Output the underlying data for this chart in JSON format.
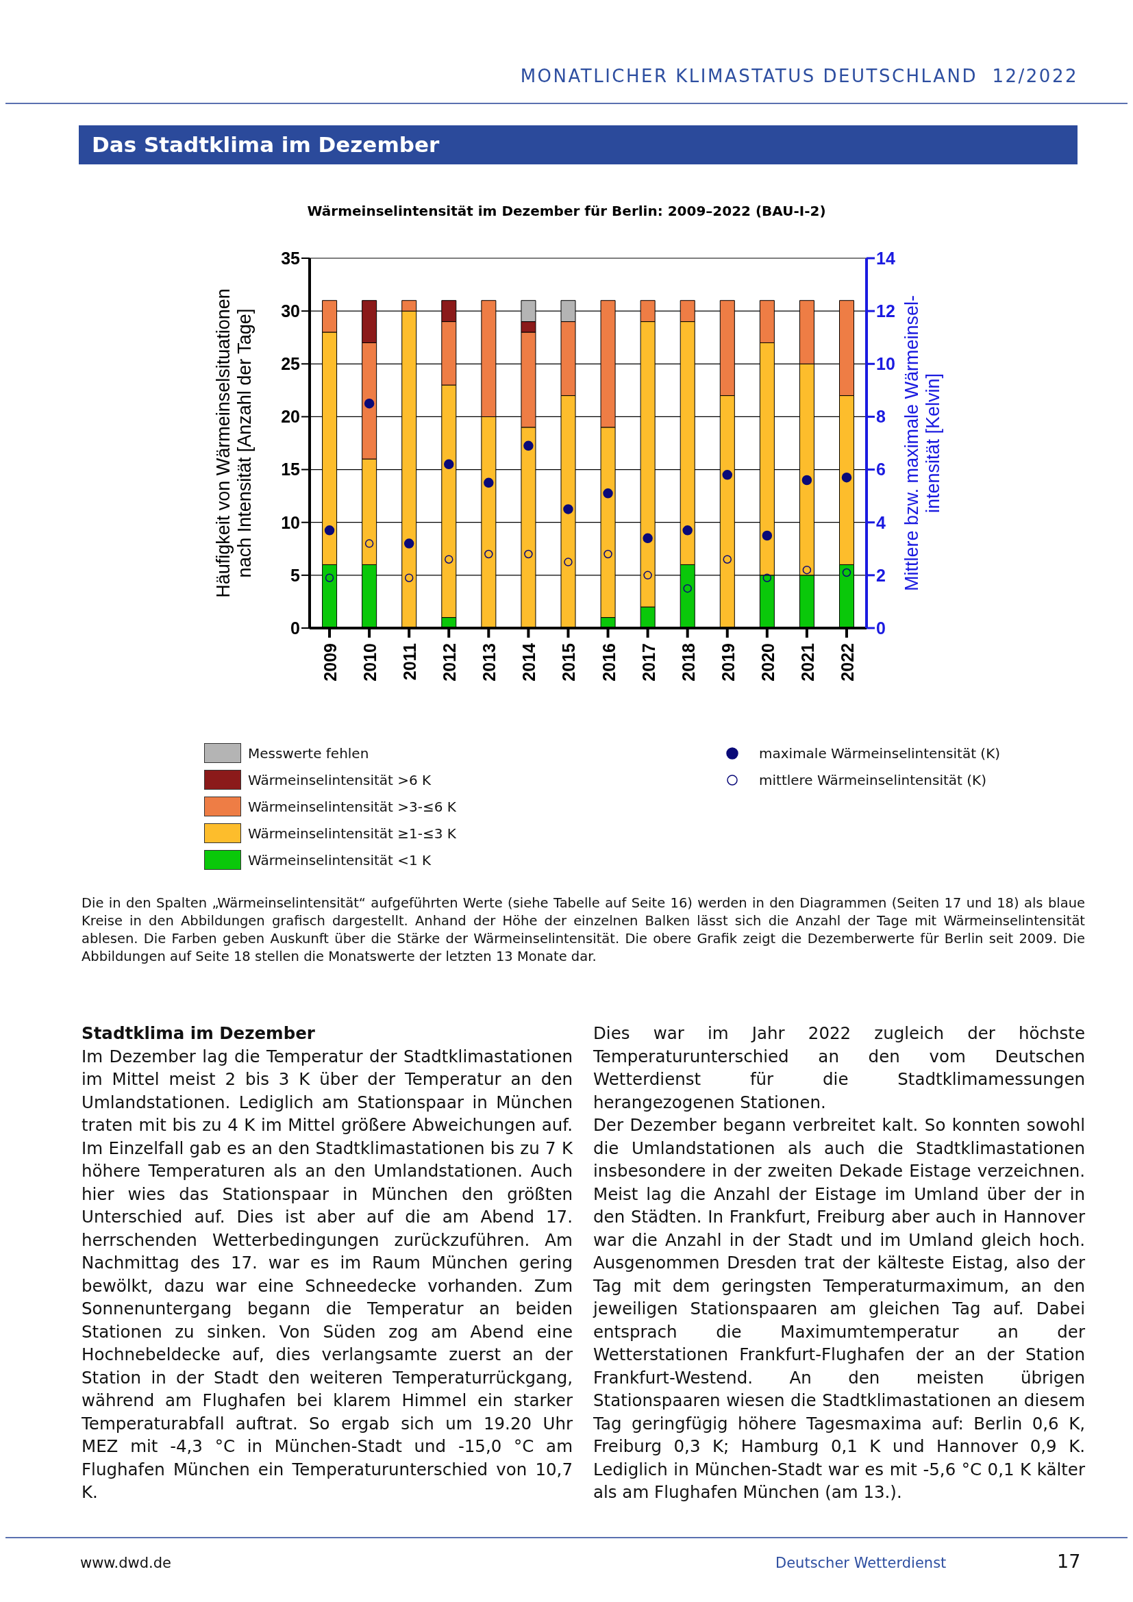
{
  "chart_data": {
    "type": "bar",
    "title": "Wärmeinselintensität im Dezember für Berlin: 2009–2022 (BAU-I-2)",
    "ylabel": "Häufigkeit von Wärmeinselsituationen\nnach Intensität [Anzahl der Tage]",
    "y2label": "Mittlere bzw. maximale Wärmeinsel-\nintensität [Kelvin]",
    "categories": [
      "2009",
      "2010",
      "2011",
      "2012",
      "2013",
      "2014",
      "2015",
      "2016",
      "2017",
      "2018",
      "2019",
      "2020",
      "2021",
      "2022"
    ],
    "stacked": true,
    "grid": "y",
    "legend": "bottom",
    "ylim": [
      0,
      35
    ],
    "yticks": [
      0,
      5,
      10,
      15,
      20,
      25,
      30,
      35
    ],
    "y2lim": [
      0,
      14
    ],
    "y2ticks": [
      0,
      2,
      4,
      6,
      8,
      10,
      12,
      14
    ],
    "series": [
      {
        "name": "Wärmeinselintensität <1 K",
        "color": "#0ac80a",
        "values": [
          6,
          6,
          0,
          1,
          0,
          0,
          0,
          1,
          2,
          6,
          0,
          5,
          5,
          6
        ]
      },
      {
        "name": "Wärmeinselintensität ≥1-≤3 K",
        "color": "#fdbd2c",
        "values": [
          22,
          10,
          30,
          22,
          20,
          19,
          22,
          18,
          27,
          23,
          22,
          22,
          20,
          16
        ]
      },
      {
        "name": "Wärmeinselintensität >3-≤6 K",
        "color": "#ee7d45",
        "values": [
          3,
          11,
          1,
          6,
          11,
          9,
          7,
          12,
          2,
          2,
          9,
          4,
          6,
          9
        ]
      },
      {
        "name": "Wärmeinselintensität >6 K",
        "color": "#8b1a1a",
        "values": [
          0,
          4,
          0,
          2,
          0,
          1,
          0,
          0,
          0,
          0,
          0,
          0,
          0,
          0
        ]
      },
      {
        "name": "Messwerte fehlen",
        "color": "#b4b4b4",
        "values": [
          0,
          0,
          0,
          0,
          0,
          2,
          2,
          0,
          0,
          0,
          0,
          0,
          0,
          0
        ]
      },
      {
        "name": "maximale Wärmeinselintensität (K)",
        "type": "scatter",
        "axis": "y2",
        "marker": "circle",
        "color": "#0a0a78",
        "values": [
          3.7,
          8.5,
          3.2,
          6.2,
          5.5,
          6.9,
          4.5,
          5.1,
          3.4,
          3.7,
          5.8,
          3.5,
          5.6,
          5.7
        ]
      },
      {
        "name": "mittlere Wärmeinselintensität (K)",
        "type": "scatter",
        "axis": "y2",
        "marker": "circle",
        "color": "#0a0a78",
        "values": [
          1.9,
          3.2,
          1.9,
          2.6,
          2.8,
          2.8,
          2.5,
          2.8,
          2.0,
          1.5,
          2.6,
          1.9,
          2.2,
          2.1
        ]
      }
    ],
    "annotations": [
      "MONATLICHER KLIMASTATUS DEUTSCHLAND  12/2022",
      "Das Stadtklima im Dezember",
      "Die in den Spalten „Wärmeinselintensität“ aufgeführten Werte (siehe Tabelle auf Seite 16) werden in den Diagrammen (Seiten 17 und 18) als blaue Kreise in den Abbildungen grafisch dargestellt. Anhand der Höhe der einzelnen Balken lässt sich die Anzahl der Tage mit Wärmeinselintensität ablesen. Die Farben geben Auskunft über die Stärke der Wärmeinselintensität. Die obere Grafik zeigt die Dezemberwerte für Berlin seit 2009. Die Abbildungen auf Seite 18 stellen die Monatswerte der letzten 13 Monate dar.",
      "Stadtklima im Dezember",
      "Im Dezember lag die Temperatur der Stadtklimastationen im Mittel meist 2 bis 3 K über der Temperatur an den Umlandstationen. Lediglich am Stationspaar in München traten mit bis zu 4 K im Mittel größere Abweichungen auf. Im Einzelfall gab es an den Stadtklimastationen bis zu 7 K höhere Temperaturen als an den Umlandstationen. Auch hier wies das Stationspaar in München den größten Unterschied auf. Dies ist aber auf die am Abend 17. herrschenden Wetterbedingungen zurückzuführen. Am Nachmittag des 17. war es im Raum München gering bewölkt, dazu war eine Schneedecke vorhanden. Zum Sonnenuntergang begann die Temperatur an beiden Stationen zu sinken. Von Süden zog am Abend eine Hochnebeldecke auf, dies verlangsamte zuerst an der Station in der Stadt den weiteren Temperaturrückgang, während am Flughafen bei klarem Himmel ein starker Temperaturabfall auftrat. So ergab sich um 19.20 Uhr MEZ mit -4,3 °C in München-Stadt und -15,0 °C am Flughafen München ein Temperaturunterschied von 10,7 K.",
      "Dies war im Jahr 2022 zugleich der höchste Temperaturunterschied an den vom Deutschen Wetterdienst für die Stadtklimamessungen herangezogenen Stationen.",
      "Der Dezember begann verbreitet kalt. So konnten sowohl die Umlandstationen als auch die Stadtklimastationen insbesondere in der zweiten Dekade Eistage verzeichnen. Meist lag die Anzahl der Eistage im Umland über der in den Städten. In Frankfurt, Freiburg aber auch in Hannover war die Anzahl in der Stadt und im Umland gleich hoch. Ausgenommen Dresden trat der kälteste Eistag, also der Tag mit dem geringsten Temperaturmaximum, an den jeweiligen Stationspaaren am gleichen Tag auf. Dabei entsprach die Maximumtemperatur an der Wetterstationen Frankfurt-Flughafen der an der Station Frankfurt-Westend. An den meisten übrigen Stationspaaren wiesen die Stadtklimastationen an diesem Tag geringfügig höhere Tagesmaxima auf: Berlin 0,6 K, Freiburg 0,3 K; Hamburg 0,1 K und Hannover 0,9 K. Lediglich in München-Stadt war es mit -5,6 °C 0,1 K kälter als am Flughafen München (am 13.).",
      "www.dwd.de",
      "Deutscher Wetterdienst",
      "17"
    ]
  }
}
